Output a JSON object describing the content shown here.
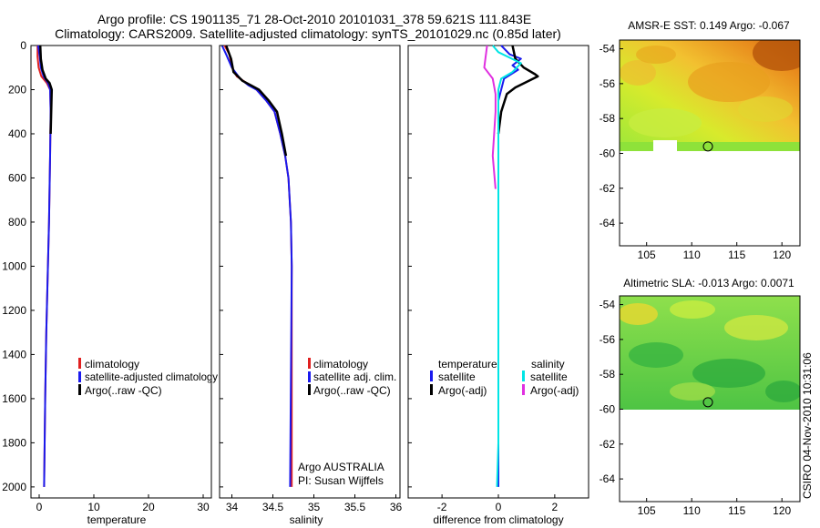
{
  "header": {
    "line1": "Argo profile: CS 1901135_71 28-Oct-2010 20101031_378 59.621S 111.843E",
    "line2": "Climatology: CARS2009. Satellite-adjusted climatology: synTS_20101029.nc (0.85d later)"
  },
  "colors": {
    "red": "#e02020",
    "blue": "#1a1aee",
    "black": "#000000",
    "cyan": "#00e5e5",
    "magenta": "#e030e0"
  },
  "chart_data": [
    {
      "type": "line",
      "name": "temperature-profile",
      "xlabel": "temperature",
      "ylabel": "",
      "xlim": [
        -1.5,
        31.5
      ],
      "ylim": [
        2050,
        0
      ],
      "xticks": [
        "0",
        "10",
        "20",
        "30"
      ],
      "xtick_values": [
        0,
        10,
        20,
        30
      ],
      "yticks": [
        "0",
        "200",
        "400",
        "600",
        "800",
        "1000",
        "1200",
        "1400",
        "1600",
        "1800",
        "2000"
      ],
      "ytick_values": [
        0,
        200,
        400,
        600,
        800,
        1000,
        1200,
        1400,
        1600,
        1800,
        2000
      ],
      "legend": {
        "entries": [
          "climatology",
          "satellite-adjusted climatology",
          "Argo(..raw -QC)"
        ],
        "placement": "lower-middle"
      },
      "series": [
        {
          "name": "climatology",
          "color": "red",
          "points": [
            [
              -0.3,
              0
            ],
            [
              -0.3,
              50
            ],
            [
              -0.1,
              100
            ],
            [
              0.4,
              140
            ],
            [
              1.4,
              170
            ],
            [
              2.0,
              200
            ],
            [
              2.1,
              300
            ],
            [
              2.0,
              500
            ],
            [
              1.8,
              800
            ],
            [
              1.6,
              1000
            ],
            [
              1.3,
              1300
            ],
            [
              1.1,
              1600
            ],
            [
              0.9,
              2000
            ]
          ]
        },
        {
          "name": "satellite-adjusted climatology",
          "color": "blue",
          "points": [
            [
              -0.2,
              0
            ],
            [
              0.1,
              50
            ],
            [
              0.3,
              100
            ],
            [
              0.8,
              140
            ],
            [
              1.6,
              170
            ],
            [
              2.0,
              200
            ],
            [
              2.1,
              300
            ],
            [
              2.0,
              500
            ],
            [
              1.8,
              800
            ],
            [
              1.6,
              1000
            ],
            [
              1.3,
              1300
            ],
            [
              1.1,
              1600
            ],
            [
              0.9,
              2000
            ]
          ]
        },
        {
          "name": "Argo(..raw -QC)",
          "color": "black",
          "points": [
            [
              0.2,
              0
            ],
            [
              0.3,
              60
            ],
            [
              0.6,
              110
            ],
            [
              1.2,
              150
            ],
            [
              1.9,
              170
            ],
            [
              2.3,
              200
            ],
            [
              2.2,
              300
            ],
            [
              2.1,
              400
            ]
          ]
        }
      ]
    },
    {
      "type": "line",
      "name": "salinity-profile",
      "xlabel": "salinity",
      "ylabel": "",
      "xlim": [
        33.85,
        36.05
      ],
      "ylim": [
        2050,
        0
      ],
      "xticks": [
        "34",
        "34.5",
        "35",
        "35.5",
        "36"
      ],
      "xtick_values": [
        34,
        34.5,
        35,
        35.5,
        36
      ],
      "annotation": [
        "Argo AUSTRALIA",
        "PI: Susan Wijffels"
      ],
      "legend": {
        "entries": [
          "climatology",
          "satellite adj. clim.",
          "Argo(..raw -QC)"
        ],
        "placement": "lower-middle"
      },
      "series": [
        {
          "name": "climatology",
          "color": "red",
          "points": [
            [
              33.91,
              0
            ],
            [
              33.97,
              40
            ],
            [
              34.0,
              100
            ],
            [
              34.06,
              140
            ],
            [
              34.18,
              170
            ],
            [
              34.3,
              200
            ],
            [
              34.42,
              250
            ],
            [
              34.52,
              300
            ],
            [
              34.59,
              400
            ],
            [
              34.65,
              500
            ],
            [
              34.69,
              600
            ],
            [
              34.72,
              800
            ],
            [
              34.73,
              1000
            ],
            [
              34.73,
              2000
            ]
          ]
        },
        {
          "name": "satellite adj. clim.",
          "color": "blue",
          "points": [
            [
              33.88,
              0
            ],
            [
              33.93,
              40
            ],
            [
              34.0,
              100
            ],
            [
              34.1,
              150
            ],
            [
              34.2,
              180
            ],
            [
              34.3,
              200
            ],
            [
              34.42,
              250
            ],
            [
              34.52,
              300
            ],
            [
              34.59,
              400
            ],
            [
              34.65,
              500
            ],
            [
              34.69,
              600
            ],
            [
              34.72,
              800
            ],
            [
              34.73,
              1000
            ],
            [
              34.72,
              1500
            ],
            [
              34.71,
              2000
            ]
          ]
        },
        {
          "name": "Argo(..raw -QC)",
          "color": "black",
          "points": [
            [
              33.93,
              0
            ],
            [
              33.99,
              60
            ],
            [
              34.02,
              120
            ],
            [
              34.13,
              160
            ],
            [
              34.23,
              180
            ],
            [
              34.33,
              200
            ],
            [
              34.45,
              250
            ],
            [
              34.55,
              300
            ],
            [
              34.61,
              400
            ],
            [
              34.66,
              500
            ]
          ]
        }
      ]
    },
    {
      "type": "line",
      "name": "difference-from-climatology",
      "xlabel": "difference from climatology",
      "ylabel": "",
      "xlim": [
        -3.2,
        3.2
      ],
      "ylim": [
        2050,
        0
      ],
      "xticks": [
        "-2",
        "0",
        "2"
      ],
      "xtick_values": [
        -2,
        0,
        2
      ],
      "legend": {
        "temperature_title": "temperature",
        "salinity_title": "salinity",
        "temperature_entries": [
          "satellite",
          "Argo(-adj)"
        ],
        "salinity_entries": [
          "satellite",
          "Argo(-adj)"
        ],
        "placement": "lower-middle"
      },
      "series": [
        {
          "name": "temperature satellite",
          "color": "blue",
          "points": [
            [
              0.1,
              0
            ],
            [
              0.4,
              40
            ],
            [
              0.8,
              60
            ],
            [
              0.5,
              90
            ],
            [
              0.7,
              110
            ],
            [
              0.2,
              150
            ],
            [
              0,
              250
            ],
            [
              0,
              2000
            ]
          ]
        },
        {
          "name": "temperature Argo(-adj)",
          "color": "black",
          "points": [
            [
              0.5,
              0
            ],
            [
              0.6,
              60
            ],
            [
              0.9,
              100
            ],
            [
              1.3,
              130
            ],
            [
              1.4,
              140
            ],
            [
              0.6,
              190
            ],
            [
              0.3,
              220
            ],
            [
              0.1,
              300
            ],
            [
              0,
              400
            ]
          ]
        },
        {
          "name": "salinity satellite",
          "color": "cyan",
          "points": [
            [
              -0.2,
              0
            ],
            [
              0,
              30
            ],
            [
              0.8,
              80
            ],
            [
              0.5,
              120
            ],
            [
              0.1,
              150
            ],
            [
              0,
              200
            ],
            [
              0,
              1800
            ],
            [
              -0.05,
              2000
            ]
          ]
        },
        {
          "name": "salinity Argo(-adj)",
          "color": "magenta",
          "points": [
            [
              -0.4,
              0
            ],
            [
              -0.5,
              100
            ],
            [
              -0.2,
              150
            ],
            [
              -0.1,
              220
            ],
            [
              -0.1,
              300
            ],
            [
              -0.2,
              500
            ],
            [
              -0.1,
              650
            ]
          ]
        }
      ]
    },
    {
      "type": "heatmap",
      "name": "sst-map",
      "title": "AMSR-E SST: 0.149 Argo: -0.067",
      "xlim": [
        102,
        122
      ],
      "ylim": [
        -65.3,
        -53.5
      ],
      "xticks": [
        "105",
        "110",
        "115",
        "120"
      ],
      "xtick_values": [
        105,
        110,
        115,
        120
      ],
      "yticks": [
        "-54",
        "-56",
        "-58",
        "-60",
        "-62",
        "-64"
      ],
      "ytick_values": [
        -54,
        -56,
        -58,
        -60,
        -62,
        -64
      ],
      "marker": [
        111.8,
        -59.6
      ],
      "data_extent_lat": [
        -60.2,
        -53.5
      ]
    },
    {
      "type": "heatmap",
      "name": "sla-map",
      "title": "Altimetric SLA: -0.013 Argo: 0.0071",
      "xlim": [
        102,
        122
      ],
      "ylim": [
        -65.3,
        -53.5
      ],
      "xticks": [
        "105",
        "110",
        "115",
        "120"
      ],
      "xtick_values": [
        105,
        110,
        115,
        120
      ],
      "yticks": [
        "-54",
        "-56",
        "-58",
        "-60",
        "-62",
        "-64"
      ],
      "ytick_values": [
        -54,
        -56,
        -58,
        -60,
        -62,
        -64
      ],
      "marker": [
        111.8,
        -59.6
      ],
      "data_extent_lat": [
        -60.0,
        -53.5
      ]
    }
  ],
  "credit": "CSIRO 04-Nov-2010 10:31:06"
}
